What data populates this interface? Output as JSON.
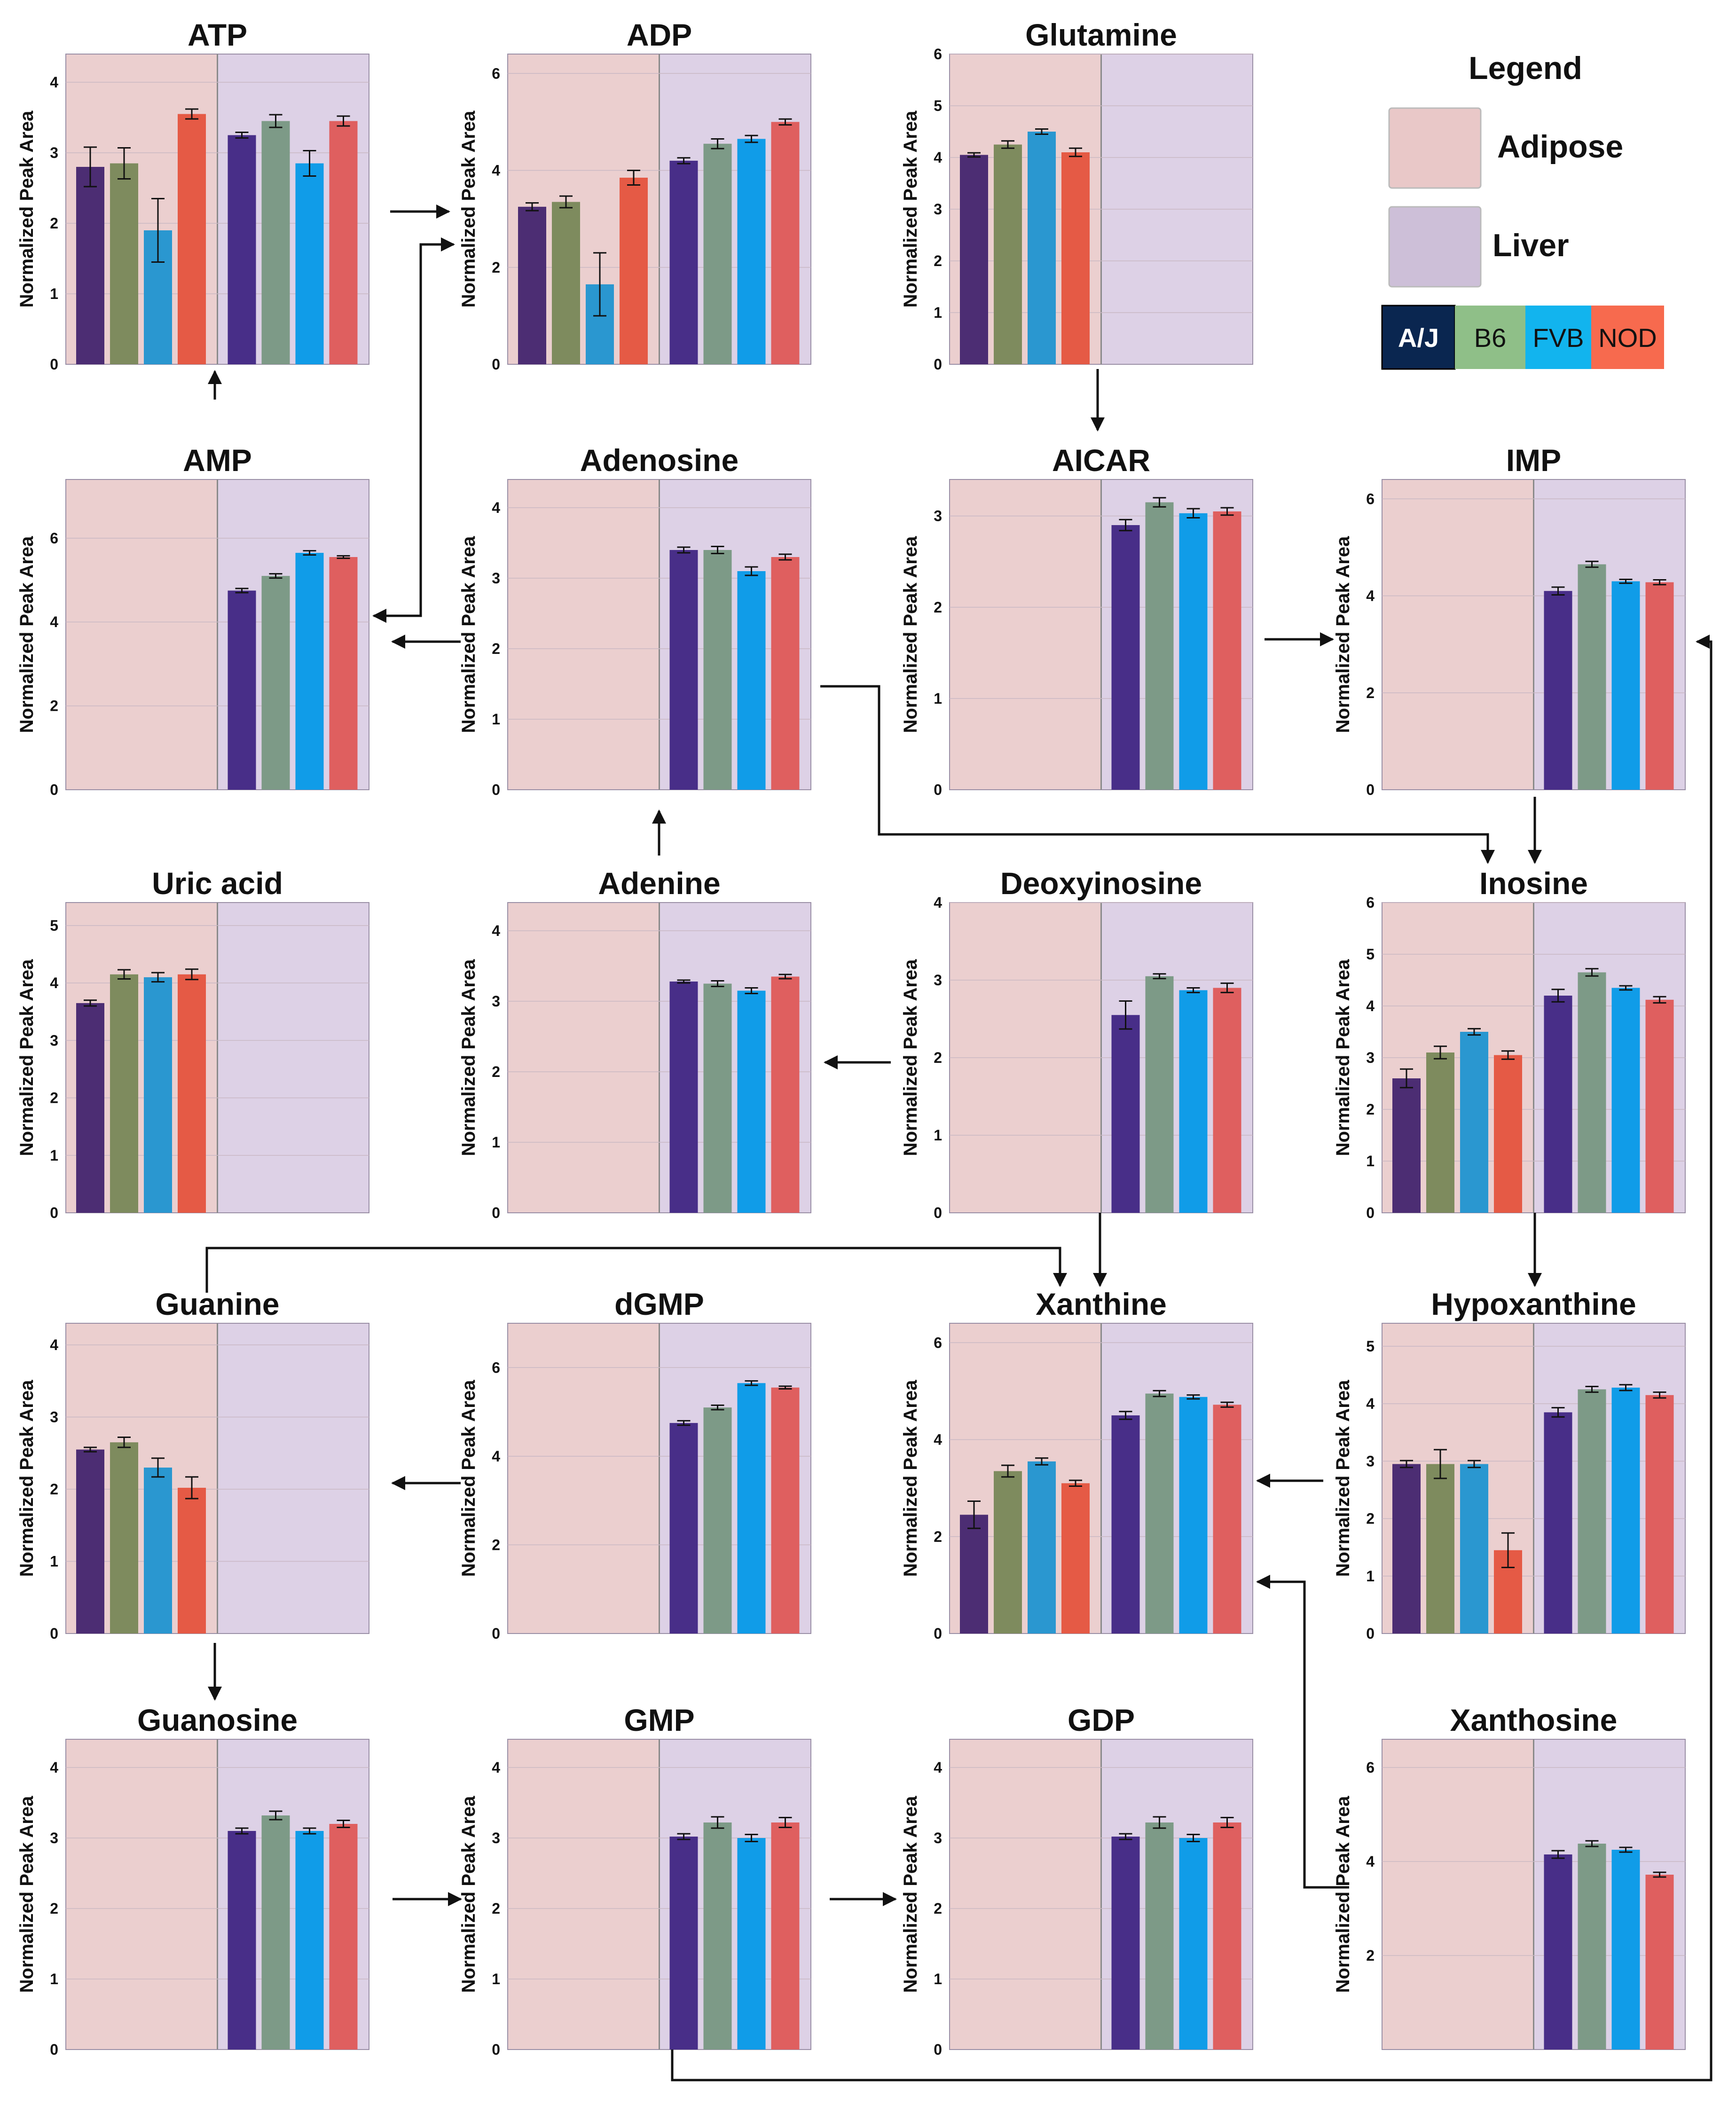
{
  "figure": {
    "ylabel": "Normalized Peak Area",
    "regions": [
      "Adipose",
      "Liver"
    ],
    "strains": [
      "A/J",
      "B6",
      "FVB",
      "NOD"
    ]
  },
  "legend": {
    "title": "Legend",
    "adipose_label": "Adipose",
    "liver_label": "Liver",
    "strains": [
      {
        "label": "A/J",
        "color": "#0a2650"
      },
      {
        "label": "B6",
        "color": "#8fbf88"
      },
      {
        "label": "FVB",
        "color": "#12b4ee"
      },
      {
        "label": "NOD",
        "color": "#f76a4e"
      }
    ]
  },
  "colors": {
    "adipose_bg": "#ebcfcf",
    "liver_bg": "#ddd1e6",
    "bars": [
      "#4c2d73",
      "#7e8b5e",
      "#2a97d0",
      "#e55a45"
    ],
    "liver_bars": [
      "#482e88",
      "#7d9a87",
      "#109ce8",
      "#df5f5f"
    ],
    "divider": "#8a8a8a",
    "arrow": "#111111"
  },
  "chart_data": [
    {
      "title": "ATP",
      "type": "bar",
      "categories": [
        "A/J",
        "B6",
        "FVB",
        "NOD"
      ],
      "ylim": [
        0,
        4.4
      ],
      "yticks": [
        0,
        1,
        2,
        3,
        4
      ],
      "series": [
        {
          "name": "Adipose",
          "values": [
            2.8,
            2.85,
            1.9,
            3.55
          ],
          "errors": [
            0.28,
            0.22,
            0.45,
            0.07
          ]
        },
        {
          "name": "Liver",
          "values": [
            3.25,
            3.45,
            2.85,
            3.45
          ],
          "errors": [
            0.04,
            0.09,
            0.18,
            0.07
          ]
        }
      ]
    },
    {
      "title": "ADP",
      "type": "bar",
      "categories": [
        "A/J",
        "B6",
        "FVB",
        "NOD"
      ],
      "ylim": [
        0,
        6.4
      ],
      "yticks": [
        0,
        2,
        4,
        6
      ],
      "series": [
        {
          "name": "Adipose",
          "values": [
            3.25,
            3.35,
            1.65,
            3.85
          ],
          "errors": [
            0.08,
            0.12,
            0.65,
            0.15
          ]
        },
        {
          "name": "Liver",
          "values": [
            4.2,
            4.55,
            4.65,
            5.0
          ],
          "errors": [
            0.06,
            0.1,
            0.07,
            0.06
          ]
        }
      ]
    },
    {
      "title": "Glutamine",
      "type": "bar",
      "categories": [
        "A/J",
        "B6",
        "FVB",
        "NOD"
      ],
      "ylim": [
        0,
        6
      ],
      "yticks": [
        0,
        1,
        2,
        3,
        4,
        5,
        6
      ],
      "series": [
        {
          "name": "Adipose",
          "values": [
            4.05,
            4.25,
            4.5,
            4.1
          ],
          "errors": [
            0.04,
            0.07,
            0.05,
            0.08
          ]
        },
        {
          "name": "Liver",
          "values": [
            null,
            null,
            null,
            null
          ],
          "errors": [
            null,
            null,
            null,
            null
          ]
        }
      ]
    },
    {
      "title": "AMP",
      "type": "bar",
      "categories": [
        "A/J",
        "B6",
        "FVB",
        "NOD"
      ],
      "ylim": [
        0,
        7.4
      ],
      "yticks": [
        0,
        2,
        4,
        6
      ],
      "series": [
        {
          "name": "Adipose",
          "values": [
            null,
            null,
            null,
            null
          ],
          "errors": [
            null,
            null,
            null,
            null
          ]
        },
        {
          "name": "Liver",
          "values": [
            4.75,
            5.1,
            5.65,
            5.55
          ],
          "errors": [
            0.05,
            0.05,
            0.05,
            0.03
          ]
        }
      ]
    },
    {
      "title": "Adenosine",
      "type": "bar",
      "categories": [
        "A/J",
        "B6",
        "FVB",
        "NOD"
      ],
      "ylim": [
        0,
        4.4
      ],
      "yticks": [
        0,
        1,
        2,
        3,
        4
      ],
      "series": [
        {
          "name": "Adipose",
          "values": [
            null,
            null,
            null,
            null
          ],
          "errors": [
            null,
            null,
            null,
            null
          ]
        },
        {
          "name": "Liver",
          "values": [
            3.4,
            3.4,
            3.1,
            3.3
          ],
          "errors": [
            0.04,
            0.05,
            0.06,
            0.04
          ]
        }
      ]
    },
    {
      "title": "AICAR",
      "type": "bar",
      "categories": [
        "A/J",
        "B6",
        "FVB",
        "NOD"
      ],
      "ylim": [
        0,
        3.4
      ],
      "yticks": [
        0,
        1,
        2,
        3
      ],
      "series": [
        {
          "name": "Adipose",
          "values": [
            null,
            null,
            null,
            null
          ],
          "errors": [
            null,
            null,
            null,
            null
          ]
        },
        {
          "name": "Liver",
          "values": [
            2.9,
            3.15,
            3.03,
            3.05
          ],
          "errors": [
            0.06,
            0.05,
            0.05,
            0.04
          ]
        }
      ]
    },
    {
      "title": "IMP",
      "type": "bar",
      "categories": [
        "A/J",
        "B6",
        "FVB",
        "NOD"
      ],
      "ylim": [
        0,
        6.4
      ],
      "yticks": [
        0,
        2,
        4,
        6
      ],
      "series": [
        {
          "name": "Adipose",
          "values": [
            null,
            null,
            null,
            null
          ],
          "errors": [
            null,
            null,
            null,
            null
          ]
        },
        {
          "name": "Liver",
          "values": [
            4.1,
            4.65,
            4.3,
            4.28
          ],
          "errors": [
            0.08,
            0.06,
            0.04,
            0.05
          ]
        }
      ]
    },
    {
      "title": "Uric acid",
      "type": "bar",
      "categories": [
        "A/J",
        "B6",
        "FVB",
        "NOD"
      ],
      "ylim": [
        0,
        5.4
      ],
      "yticks": [
        0,
        1,
        2,
        3,
        4,
        5
      ],
      "series": [
        {
          "name": "Adipose",
          "values": [
            3.65,
            4.15,
            4.1,
            4.15
          ],
          "errors": [
            0.05,
            0.08,
            0.08,
            0.09
          ]
        },
        {
          "name": "Liver",
          "values": [
            null,
            null,
            null,
            null
          ],
          "errors": [
            null,
            null,
            null,
            null
          ]
        }
      ]
    },
    {
      "title": "Adenine",
      "type": "bar",
      "categories": [
        "A/J",
        "B6",
        "FVB",
        "NOD"
      ],
      "ylim": [
        0,
        4.4
      ],
      "yticks": [
        0,
        1,
        2,
        3,
        4
      ],
      "series": [
        {
          "name": "Adipose",
          "values": [
            null,
            null,
            null,
            null
          ],
          "errors": [
            null,
            null,
            null,
            null
          ]
        },
        {
          "name": "Liver",
          "values": [
            3.28,
            3.25,
            3.15,
            3.35
          ],
          "errors": [
            0.02,
            0.04,
            0.04,
            0.03
          ]
        }
      ]
    },
    {
      "title": "Deoxyinosine",
      "type": "bar",
      "categories": [
        "A/J",
        "B6",
        "FVB",
        "NOD"
      ],
      "ylim": [
        0,
        4
      ],
      "yticks": [
        0,
        1,
        2,
        3,
        4
      ],
      "series": [
        {
          "name": "Adipose",
          "values": [
            null,
            null,
            null,
            null
          ],
          "errors": [
            null,
            null,
            null,
            null
          ]
        },
        {
          "name": "Liver",
          "values": [
            2.55,
            3.05,
            2.87,
            2.9
          ],
          "errors": [
            0.18,
            0.03,
            0.03,
            0.06
          ]
        }
      ]
    },
    {
      "title": "Inosine",
      "type": "bar",
      "categories": [
        "A/J",
        "B6",
        "FVB",
        "NOD"
      ],
      "ylim": [
        0,
        6
      ],
      "yticks": [
        0,
        1,
        2,
        3,
        4,
        5,
        6
      ],
      "series": [
        {
          "name": "Adipose",
          "values": [
            2.6,
            3.1,
            3.5,
            3.05
          ],
          "errors": [
            0.18,
            0.12,
            0.06,
            0.08
          ]
        },
        {
          "name": "Liver",
          "values": [
            4.2,
            4.65,
            4.35,
            4.12
          ],
          "errors": [
            0.12,
            0.07,
            0.04,
            0.06
          ]
        }
      ]
    },
    {
      "title": "Guanine",
      "type": "bar",
      "categories": [
        "A/J",
        "B6",
        "FVB",
        "NOD"
      ],
      "ylim": [
        0,
        4.3
      ],
      "yticks": [
        0,
        1,
        2,
        3,
        4
      ],
      "series": [
        {
          "name": "Adipose",
          "values": [
            2.55,
            2.65,
            2.3,
            2.02
          ],
          "errors": [
            0.03,
            0.07,
            0.13,
            0.15
          ]
        },
        {
          "name": "Liver",
          "values": [
            null,
            null,
            null,
            null
          ],
          "errors": [
            null,
            null,
            null,
            null
          ]
        }
      ]
    },
    {
      "title": "dGMP",
      "type": "bar",
      "categories": [
        "A/J",
        "B6",
        "FVB",
        "NOD"
      ],
      "ylim": [
        0,
        7
      ],
      "yticks": [
        0,
        2,
        4,
        6
      ],
      "series": [
        {
          "name": "Adipose",
          "values": [
            null,
            null,
            null,
            null
          ],
          "errors": [
            null,
            null,
            null,
            null
          ]
        },
        {
          "name": "Liver",
          "values": [
            4.75,
            5.1,
            5.65,
            5.55
          ],
          "errors": [
            0.05,
            0.05,
            0.05,
            0.03
          ]
        }
      ]
    },
    {
      "title": "Xanthine",
      "type": "bar",
      "categories": [
        "A/J",
        "B6",
        "FVB",
        "NOD"
      ],
      "ylim": [
        0,
        6.4
      ],
      "yticks": [
        0,
        2,
        4,
        6
      ],
      "series": [
        {
          "name": "Adipose",
          "values": [
            2.45,
            3.35,
            3.55,
            3.1
          ],
          "errors": [
            0.28,
            0.12,
            0.07,
            0.06
          ]
        },
        {
          "name": "Liver",
          "values": [
            4.5,
            4.95,
            4.88,
            4.72
          ],
          "errors": [
            0.08,
            0.06,
            0.04,
            0.05
          ]
        }
      ]
    },
    {
      "title": "Hypoxanthine",
      "type": "bar",
      "categories": [
        "A/J",
        "B6",
        "FVB",
        "NOD"
      ],
      "ylim": [
        0,
        5.4
      ],
      "yticks": [
        0,
        1,
        2,
        3,
        4,
        5
      ],
      "series": [
        {
          "name": "Adipose",
          "values": [
            2.95,
            2.95,
            2.95,
            1.45
          ],
          "errors": [
            0.06,
            0.25,
            0.06,
            0.3
          ]
        },
        {
          "name": "Liver",
          "values": [
            3.85,
            4.25,
            4.28,
            4.15
          ],
          "errors": [
            0.08,
            0.05,
            0.05,
            0.05
          ]
        }
      ]
    },
    {
      "title": "Guanosine",
      "type": "bar",
      "categories": [
        "A/J",
        "B6",
        "FVB",
        "NOD"
      ],
      "ylim": [
        0,
        4.4
      ],
      "yticks": [
        0,
        1,
        2,
        3,
        4
      ],
      "series": [
        {
          "name": "Adipose",
          "values": [
            null,
            null,
            null,
            null
          ],
          "errors": [
            null,
            null,
            null,
            null
          ]
        },
        {
          "name": "Liver",
          "values": [
            3.1,
            3.32,
            3.1,
            3.2
          ],
          "errors": [
            0.04,
            0.06,
            0.04,
            0.05
          ]
        }
      ]
    },
    {
      "title": "GMP",
      "type": "bar",
      "categories": [
        "A/J",
        "B6",
        "FVB",
        "NOD"
      ],
      "ylim": [
        0,
        4.4
      ],
      "yticks": [
        0,
        1,
        2,
        3,
        4
      ],
      "series": [
        {
          "name": "Adipose",
          "values": [
            null,
            null,
            null,
            null
          ],
          "errors": [
            null,
            null,
            null,
            null
          ]
        },
        {
          "name": "Liver",
          "values": [
            3.02,
            3.22,
            3.0,
            3.22
          ],
          "errors": [
            0.04,
            0.08,
            0.05,
            0.07
          ]
        }
      ]
    },
    {
      "title": "GDP",
      "type": "bar",
      "categories": [
        "A/J",
        "B6",
        "FVB",
        "NOD"
      ],
      "ylim": [
        0,
        4.4
      ],
      "yticks": [
        0,
        1,
        2,
        3,
        4
      ],
      "series": [
        {
          "name": "Adipose",
          "values": [
            null,
            null,
            null,
            null
          ],
          "errors": [
            null,
            null,
            null,
            null
          ]
        },
        {
          "name": "Liver",
          "values": [
            3.02,
            3.22,
            3.0,
            3.22
          ],
          "errors": [
            0.04,
            0.08,
            0.05,
            0.07
          ]
        }
      ]
    },
    {
      "title": "Xanthosine",
      "type": "bar",
      "categories": [
        "A/J",
        "B6",
        "FVB",
        "NOD"
      ],
      "ylim": [
        0,
        6.6
      ],
      "yticks": [
        2,
        4,
        6
      ],
      "series": [
        {
          "name": "Adipose",
          "values": [
            null,
            null,
            null,
            null
          ],
          "errors": [
            null,
            null,
            null,
            null
          ]
        },
        {
          "name": "Liver",
          "values": [
            4.15,
            4.38,
            4.25,
            3.72
          ],
          "errors": [
            0.08,
            0.06,
            0.05,
            0.05
          ]
        }
      ]
    }
  ]
}
